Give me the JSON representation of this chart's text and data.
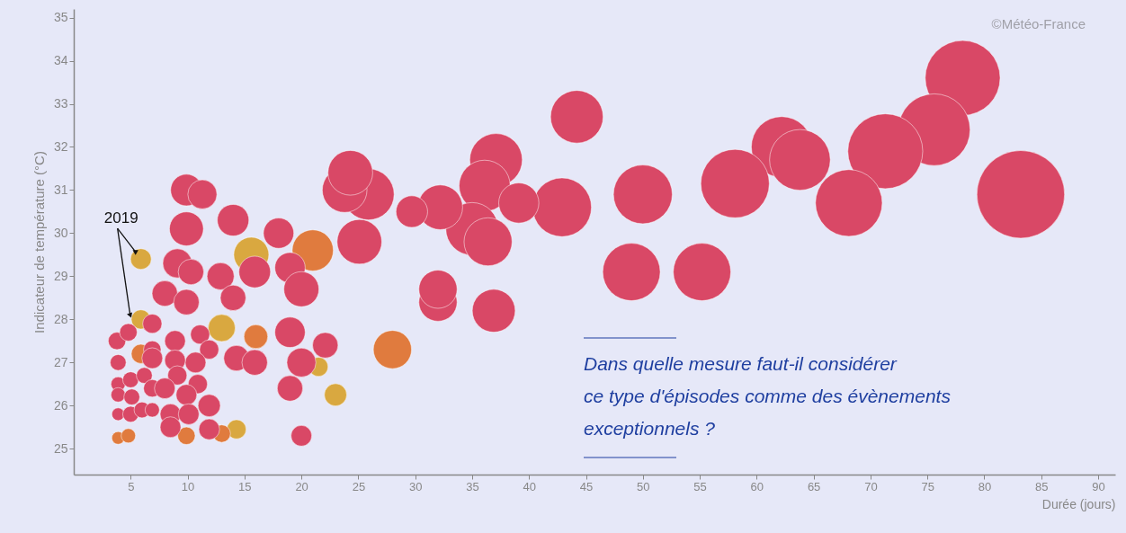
{
  "chart_data": {
    "type": "bubble",
    "xlabel": "Durée (jours)",
    "ylabel": "Indicateur de température (°C)",
    "xlim": [
      0,
      91.5
    ],
    "xticks": [
      5,
      10,
      15,
      20,
      25,
      30,
      35,
      40,
      45,
      50,
      55,
      60,
      65,
      70,
      75,
      80,
      85,
      90
    ],
    "ylim": [
      24.4,
      35.2
    ],
    "yticks": [
      25,
      26,
      27,
      28,
      29,
      30,
      31,
      32,
      33,
      34,
      35
    ],
    "grid": false,
    "annotations": [
      {
        "text": "2019",
        "x": 5.9,
        "y": 29.4
      },
      "Dans quelle mesure faut-il considérer\nce type d'épisodes comme des évènements\nexceptionnels ?",
      "©Météo-France"
    ],
    "series": [
      {
        "color": "#d9a840",
        "x": [
          5.9,
          5.9,
          13.0,
          15.6,
          23.0,
          21.5,
          14.3
        ],
        "values": [
          29.4,
          28.0,
          27.8,
          29.5,
          26.25,
          26.9,
          25.45
        ],
        "sizes": [
          0.056,
          0.048,
          0.096,
          0.16,
          0.065,
          0.048,
          0.048
        ]
      },
      {
        "color": "#e07b3e",
        "x": [
          28.0,
          21.0,
          16.0,
          5.9,
          3.9,
          4.8,
          9.9,
          13.0
        ],
        "values": [
          27.3,
          29.6,
          27.6,
          27.2,
          25.25,
          25.3,
          25.3,
          25.35
        ],
        "sizes": [
          0.19,
          0.22,
          0.074,
          0.048,
          0.021,
          0.027,
          0.04,
          0.04
        ]
      },
      {
        "color": "#d94866",
        "x": [
          78.1,
          75.6,
          71.3,
          62.2,
          63.8,
          83.2,
          68.1,
          58.1,
          50.0,
          44.2,
          42.9,
          49.0,
          55.2,
          36.9,
          32.0,
          32.0,
          37.1,
          36.1,
          39.1,
          35.0,
          36.4,
          32.2,
          29.7,
          25.9,
          23.8,
          24.3,
          25.1,
          14.0,
          18.0,
          15.9,
          12.9,
          14.0,
          19.0,
          20.0,
          19.0,
          22.1,
          20.0,
          19.0,
          20.0,
          14.3,
          15.9,
          9.9,
          11.3,
          9.9,
          9.1,
          10.3,
          8.0,
          9.9,
          6.9,
          3.8,
          4.8,
          3.9,
          8.9,
          11.1,
          11.9,
          10.7,
          6.9,
          6.9,
          8.9,
          9.1,
          10.9,
          3.9,
          5.0,
          6.2,
          3.9,
          5.1,
          6.9,
          8.0,
          9.9,
          11.9,
          3.9,
          5.0,
          6.0,
          6.9,
          8.5,
          10.1,
          8.5,
          11.9
        ],
        "values": [
          33.6,
          32.4,
          31.9,
          32.0,
          31.7,
          30.9,
          30.7,
          31.15,
          30.9,
          32.7,
          30.6,
          29.1,
          29.1,
          28.2,
          28.4,
          28.7,
          31.7,
          31.1,
          30.7,
          30.1,
          29.8,
          30.6,
          30.5,
          30.9,
          31.0,
          31.4,
          29.8,
          30.3,
          30.0,
          29.1,
          29.0,
          28.5,
          29.2,
          28.7,
          27.7,
          27.4,
          27.0,
          26.4,
          25.3,
          27.1,
          27.0,
          31.0,
          30.9,
          30.1,
          29.3,
          29.1,
          28.6,
          28.4,
          27.9,
          27.5,
          27.7,
          27.0,
          27.5,
          27.65,
          27.3,
          27.0,
          27.3,
          27.1,
          27.05,
          26.7,
          26.5,
          26.5,
          26.6,
          26.7,
          26.25,
          26.2,
          26.4,
          26.4,
          26.25,
          26.0,
          25.8,
          25.8,
          25.9,
          25.9,
          25.8,
          25.8,
          25.5,
          25.45
        ],
        "sizes": [
          0.73,
          0.67,
          0.73,
          0.48,
          0.48,
          1,
          0.58,
          0.61,
          0.45,
          0.36,
          0.45,
          0.43,
          0.43,
          0.24,
          0.19,
          0.19,
          0.36,
          0.34,
          0.21,
          0.36,
          0.3,
          0.26,
          0.13,
          0.34,
          0.26,
          0.26,
          0.26,
          0.13,
          0.12,
          0.13,
          0.096,
          0.085,
          0.12,
          0.16,
          0.12,
          0.085,
          0.11,
          0.085,
          0.056,
          0.085,
          0.085,
          0.13,
          0.11,
          0.15,
          0.11,
          0.085,
          0.085,
          0.085,
          0.048,
          0.04,
          0.04,
          0.033,
          0.056,
          0.048,
          0.048,
          0.056,
          0.04,
          0.056,
          0.056,
          0.048,
          0.048,
          0.027,
          0.033,
          0.033,
          0.027,
          0.033,
          0.04,
          0.056,
          0.056,
          0.065,
          0.021,
          0.033,
          0.033,
          0.027,
          0.056,
          0.056,
          0.056,
          0.056
        ]
      }
    ]
  }
}
